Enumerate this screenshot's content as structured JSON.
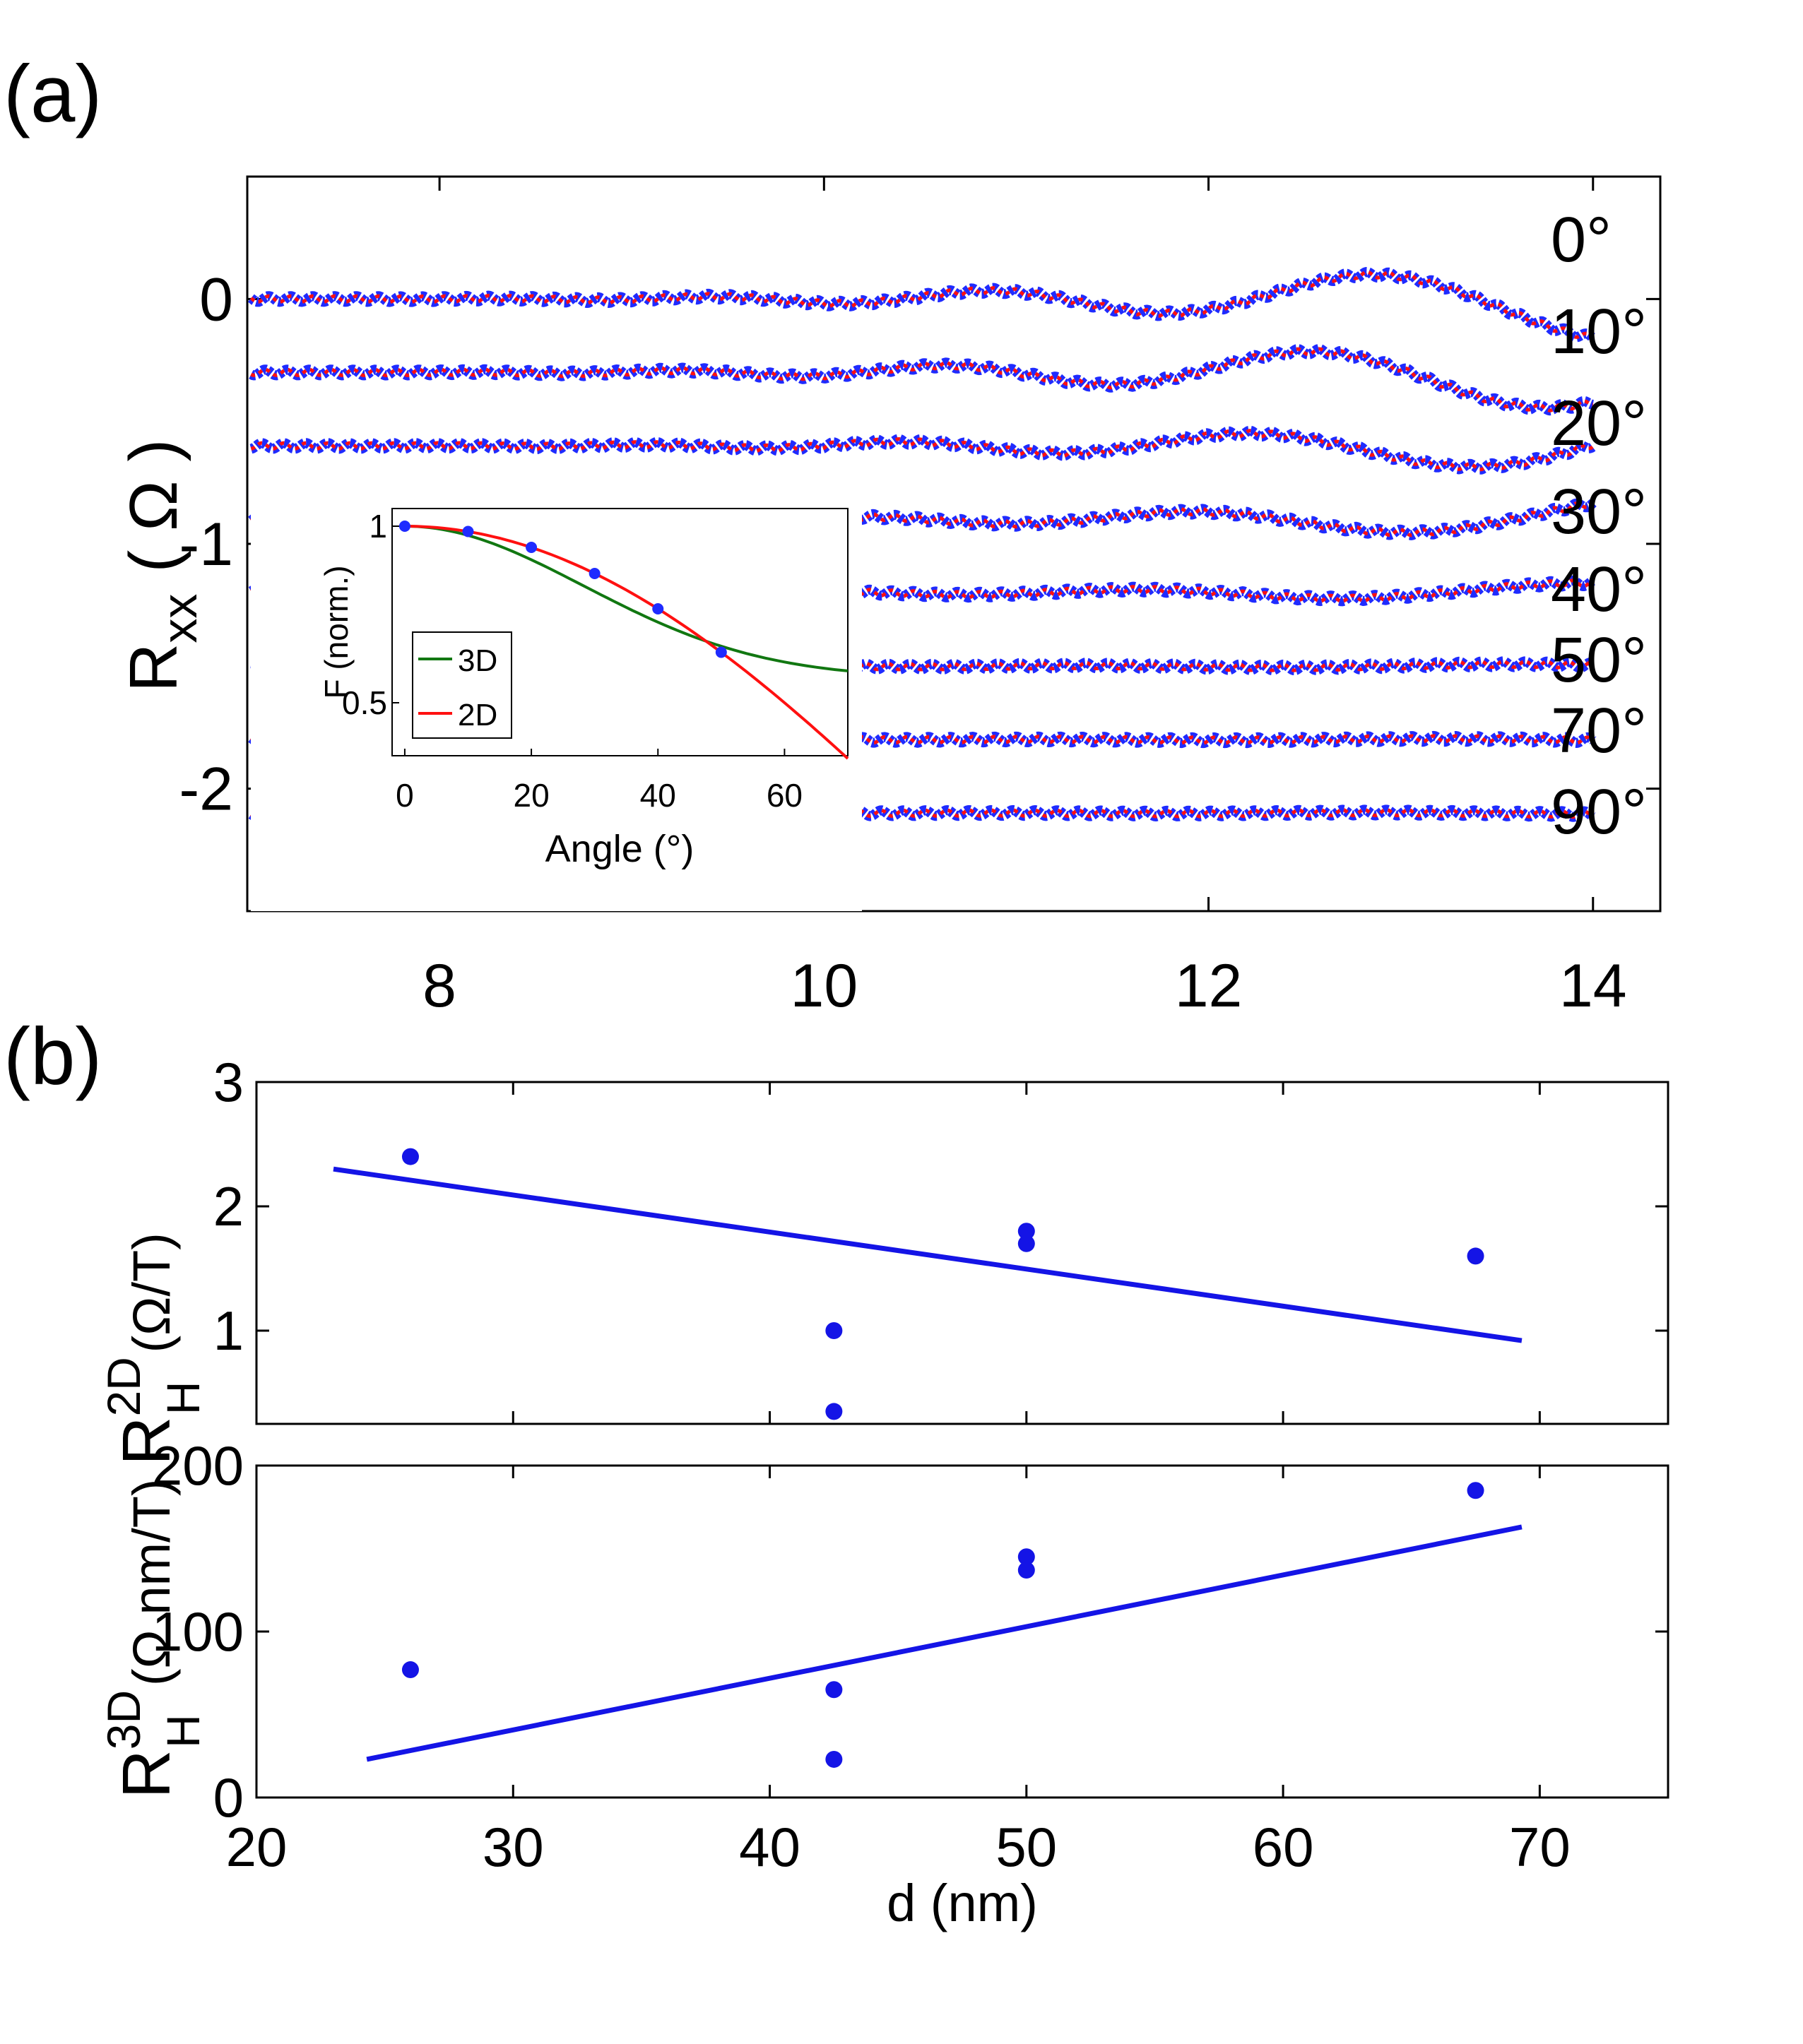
{
  "chart_data": [
    {
      "id": "a",
      "type": "line",
      "panel_label": "(a)",
      "ylabel_main": "R",
      "ylabel_sub": "xx",
      "ylabel_unit": "( Ω )",
      "xlim": [
        7,
        14.35
      ],
      "ylim": [
        -2.5,
        0.5
      ],
      "xticks": [
        8,
        10,
        12,
        14
      ],
      "xtick_labels": [
        "8",
        "10",
        "12",
        "14"
      ],
      "yticks": [
        0,
        -1,
        -2
      ],
      "ytick_labels": [
        "0",
        "-1",
        "-2"
      ],
      "series_colors": {
        "data": "#1f2bff",
        "fit": "#ff1010"
      },
      "series": [
        {
          "name": "0°",
          "offset": 0.0,
          "amp_end": 0.16
        },
        {
          "name": "10°",
          "offset": -0.3,
          "amp_end": 0.16
        },
        {
          "name": "20°",
          "offset": -0.6,
          "amp_end": 0.11
        },
        {
          "name": "30°",
          "offset": -0.9,
          "amp_end": 0.08
        },
        {
          "name": "40°",
          "offset": -1.2,
          "amp_end": 0.04
        },
        {
          "name": "50°",
          "offset": -1.5,
          "amp_end": 0.01
        },
        {
          "name": "70°",
          "offset": -1.8,
          "amp_end": 0.005
        },
        {
          "name": "90°",
          "offset": -2.1,
          "amp_end": 0.004
        }
      ]
    },
    {
      "id": "a-inset",
      "type": "line",
      "xlabel": "Angle (°)",
      "ylabel": "F (norm.)",
      "xlim": [
        -2,
        70
      ],
      "ylim": [
        0.35,
        1.05
      ],
      "xticks": [
        0,
        20,
        40,
        60
      ],
      "xtick_labels": [
        "0",
        "20",
        "40",
        "60"
      ],
      "yticks": [
        1,
        0.5
      ],
      "ytick_labels": [
        "1",
        "0.5"
      ],
      "legend_position": "bottom-left",
      "series": [
        {
          "name": "3D",
          "color": "#117711"
        },
        {
          "name": "2D",
          "color": "#ff1010"
        }
      ],
      "points": {
        "x": [
          0,
          10,
          20,
          30,
          40,
          50
        ],
        "y": [
          1.0,
          0.985,
          0.94,
          0.866,
          0.766,
          0.643
        ]
      }
    },
    {
      "id": "b-top",
      "type": "scatter",
      "panel_label": "(b)",
      "ylabel_main": "R",
      "ylabel_sup": "2D",
      "ylabel_sub": "H",
      "ylabel_unit": "(Ω/T)",
      "xlim": [
        20,
        75
      ],
      "ylim": [
        0.25,
        3
      ],
      "yticks": [
        1,
        2,
        3
      ],
      "ytick_labels": [
        "1",
        "2",
        "3"
      ],
      "x": [
        26,
        42.5,
        42.5,
        50,
        50,
        67.5
      ],
      "y": [
        2.4,
        1.0,
        0.35,
        1.8,
        1.7,
        1.6
      ],
      "fit": {
        "x": [
          23,
          69.3
        ],
        "y": [
          2.3,
          0.92
        ]
      },
      "color": "#1414e6"
    },
    {
      "id": "b-bottom",
      "type": "scatter",
      "xlabel": "d (nm)",
      "ylabel_main": "R",
      "ylabel_sup": "3D",
      "ylabel_sub": "H",
      "ylabel_unit": "(Ω nm/T)",
      "xlim": [
        20,
        75
      ],
      "ylim": [
        0,
        200
      ],
      "xticks": [
        20,
        30,
        40,
        50,
        60,
        70
      ],
      "xtick_labels": [
        "20",
        "30",
        "40",
        "50",
        "60",
        "70"
      ],
      "yticks": [
        0,
        100,
        200
      ],
      "ytick_labels": [
        "0",
        "100",
        "200"
      ],
      "x": [
        26,
        42.5,
        42.5,
        50,
        50,
        67.5
      ],
      "y": [
        77,
        65,
        23,
        145,
        137,
        185
      ],
      "fit": {
        "x": [
          24.3,
          69.3
        ],
        "y": [
          23,
          163
        ]
      },
      "color": "#1414e6"
    }
  ]
}
